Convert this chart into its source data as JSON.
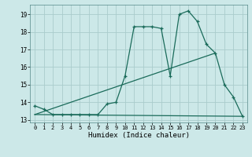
{
  "xlabel": "Humidex (Indice chaleur)",
  "bg_color": "#cce8e8",
  "line_color": "#1a6b5a",
  "grid_color": "#b0d8d8",
  "xlim": [
    -0.5,
    23.5
  ],
  "ylim": [
    12.85,
    19.55
  ],
  "yticks": [
    13,
    14,
    15,
    16,
    17,
    18,
    19
  ],
  "xticks": [
    0,
    1,
    2,
    3,
    4,
    5,
    6,
    7,
    8,
    9,
    10,
    11,
    12,
    13,
    14,
    15,
    16,
    17,
    18,
    19,
    20,
    21,
    22,
    23
  ],
  "xtick_labels": [
    "0",
    "1",
    "2",
    "3",
    "4",
    "5",
    "6",
    "7",
    "8",
    "9",
    "10",
    "11",
    "12",
    "13",
    "14",
    "15",
    "16",
    "17",
    "18",
    "19",
    "20",
    "21",
    "22",
    "23"
  ],
  "series1_x": [
    0,
    1,
    2,
    3,
    4,
    5,
    6,
    7,
    8,
    9,
    10,
    11,
    12,
    13,
    14,
    15,
    16,
    17,
    18,
    19,
    20,
    21,
    22,
    23
  ],
  "series1_y": [
    13.8,
    13.6,
    13.3,
    13.3,
    13.3,
    13.3,
    13.3,
    13.3,
    13.9,
    14.0,
    15.5,
    18.3,
    18.3,
    18.3,
    18.2,
    15.5,
    19.0,
    19.2,
    18.6,
    17.3,
    16.8,
    15.0,
    14.3,
    13.2
  ],
  "series2_x": [
    0,
    23
  ],
  "series2_y": [
    13.3,
    13.2
  ],
  "series3_x": [
    0,
    20
  ],
  "series3_y": [
    13.3,
    16.8
  ]
}
